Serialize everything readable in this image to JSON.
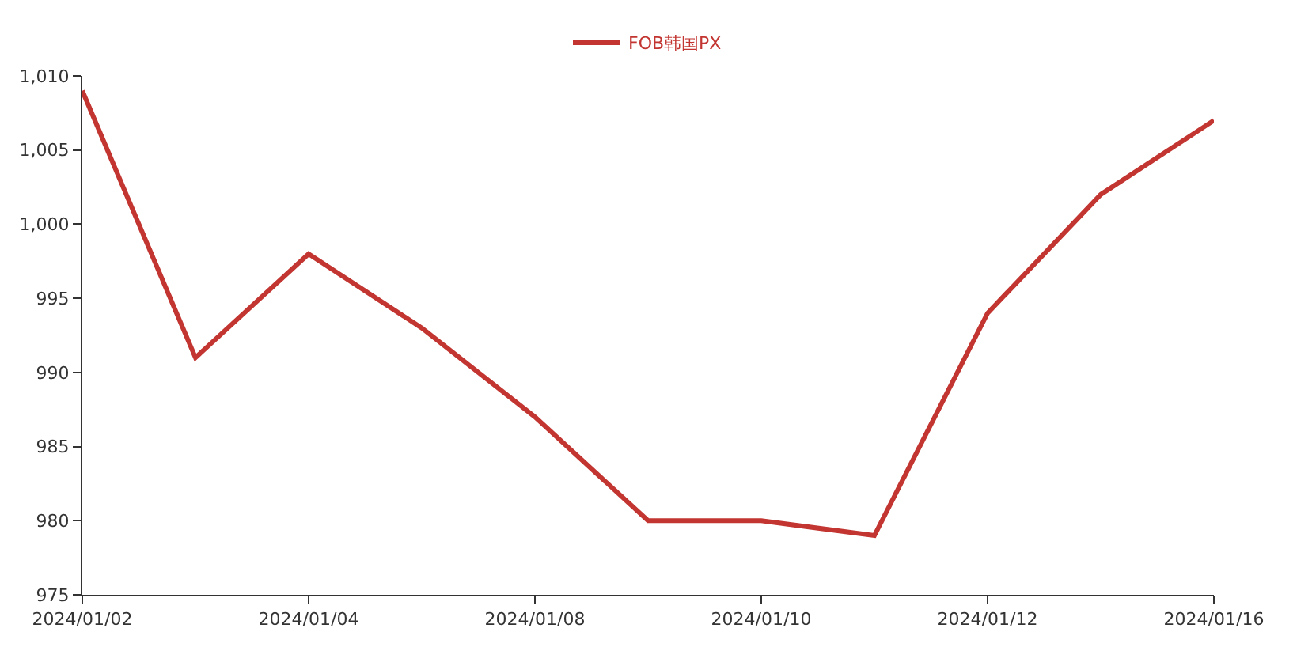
{
  "chart_data": {
    "type": "line",
    "categories": [
      "2024/01/02",
      null,
      "2024/01/04",
      null,
      "2024/01/08",
      null,
      "2024/01/10",
      null,
      "2024/01/12",
      null,
      "2024/01/16"
    ],
    "series": [
      {
        "name": "FOB韩国PX",
        "color": "#c23531",
        "values": [
          1009,
          991,
          998,
          993,
          987,
          980,
          980,
          979,
          994,
          1002,
          1007
        ]
      }
    ],
    "ylim": [
      975,
      1010
    ],
    "yticks": [
      975,
      980,
      985,
      990,
      995,
      {
        "value": 1000,
        "label": "1,000"
      },
      {
        "value": 1005,
        "label": "1,005"
      },
      {
        "value": 1010,
        "label": "1,010"
      }
    ],
    "legend": "top",
    "marker": "none",
    "line_style": "solid"
  }
}
